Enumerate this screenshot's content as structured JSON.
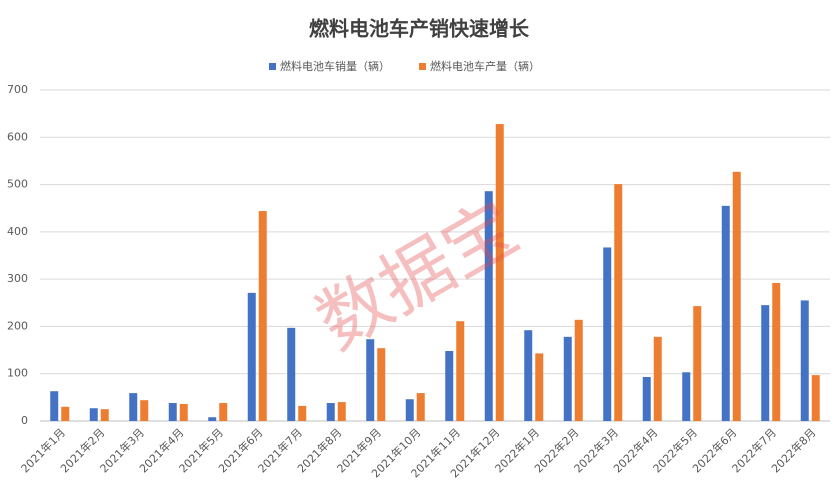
{
  "chart_data": {
    "type": "bar",
    "title": "燃料电池车产销快速增长",
    "watermark": "数据宝",
    "categories": [
      "2021年1月",
      "2021年2月",
      "2021年3月",
      "2021年4月",
      "2021年5月",
      "2021年6月",
      "2021年7月",
      "2021年8月",
      "2021年9月",
      "2021年10月",
      "2021年11月",
      "2021年12月",
      "2022年1月",
      "2022年2月",
      "2022年3月",
      "2022年4月",
      "2022年5月",
      "2022年6月",
      "2022年7月",
      "2022年8月"
    ],
    "series": [
      {
        "name": "燃料电池车销量（辆）",
        "color": "#4472c4",
        "values": [
          63,
          27,
          59,
          38,
          8,
          271,
          197,
          38,
          173,
          46,
          148,
          486,
          192,
          178,
          367,
          93,
          103,
          455,
          245,
          255
        ]
      },
      {
        "name": "燃料电池车产量（辆）",
        "color": "#ed7d31",
        "values": [
          30,
          25,
          44,
          36,
          38,
          444,
          32,
          40,
          154,
          59,
          211,
          628,
          143,
          214,
          501,
          178,
          243,
          527,
          292,
          97
        ]
      }
    ],
    "ylim": [
      0,
      700
    ],
    "yticks": [
      0,
      100,
      200,
      300,
      400,
      500,
      600,
      700
    ],
    "grid": true,
    "legend": "top"
  }
}
